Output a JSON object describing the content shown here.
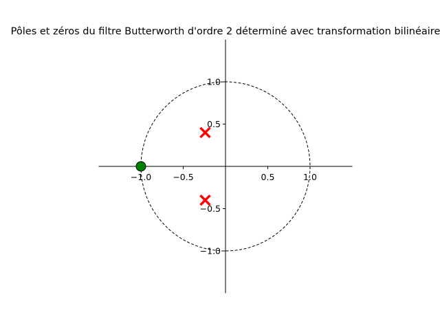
{
  "chart_data": {
    "type": "scatter",
    "title": "Pôles et zéros du filtre Butterworth d'ordre 2 déterminé avec transformation bilinéaire",
    "xlabel": "",
    "ylabel": "",
    "xlim": [
      -1.5,
      1.5
    ],
    "ylim": [
      -1.5,
      1.5
    ],
    "grid": false,
    "axes_style": "centered spines through origin",
    "unit_circle": {
      "radius": 1.0,
      "style": "dashed",
      "color": "#000000"
    },
    "x_ticks": [
      {
        "value": -1.0,
        "label": "−1.0"
      },
      {
        "value": -0.5,
        "label": "−0.5"
      },
      {
        "value": 0.5,
        "label": "0.5"
      },
      {
        "value": 1.0,
        "label": "1.0"
      }
    ],
    "y_ticks": [
      {
        "value": 1.0,
        "label": "1.0"
      },
      {
        "value": 0.5,
        "label": "0.5"
      },
      {
        "value": -0.5,
        "label": "−0.5"
      },
      {
        "value": -1.0,
        "label": "−1.0"
      }
    ],
    "zeros": {
      "marker": "circle",
      "color": "#008000",
      "edge_color": "#000000",
      "points": [
        {
          "x": -1.0,
          "y": 0.0
        }
      ]
    },
    "poles": {
      "marker": "x",
      "color": "#ff0000",
      "points": [
        {
          "x": -0.24,
          "y": 0.4
        },
        {
          "x": -0.24,
          "y": -0.4
        }
      ]
    }
  }
}
